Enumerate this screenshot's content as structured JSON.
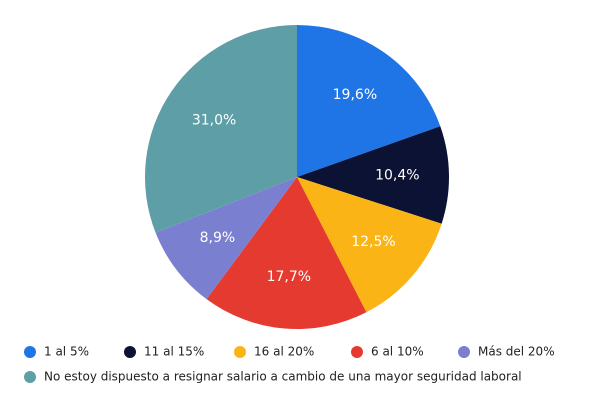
{
  "chart_data": {
    "type": "pie",
    "categories": [
      "1 al 5%",
      "11 al 15%",
      "16 al 20%",
      "6 al 10%",
      "Más del 20%",
      "No estoy dispuesto a resignar salario a cambio de una mayor seguridad laboral"
    ],
    "values": [
      19.6,
      10.4,
      12.5,
      17.7,
      8.9,
      31.0
    ],
    "value_labels": [
      "19,6%",
      "10,4%",
      "12,5%",
      "17,7%",
      "8,9%",
      "31,0%"
    ],
    "colors": [
      "#1f74e6",
      "#0c1233",
      "#fbb416",
      "#e53a2f",
      "#7b7fcf",
      "#5e9ea6"
    ]
  }
}
